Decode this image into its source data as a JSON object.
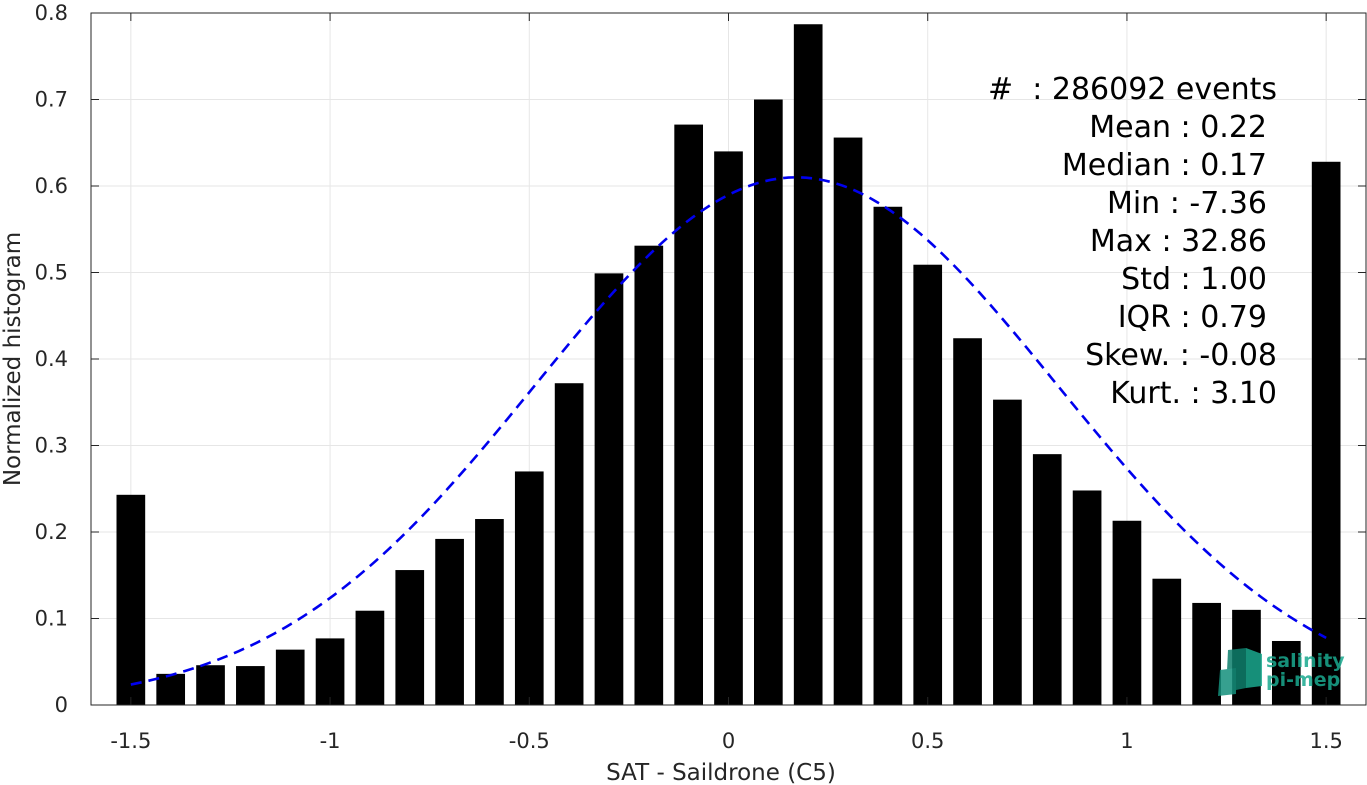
{
  "chart_data": {
    "type": "bar",
    "title": "",
    "xlabel": "SAT - Saildrone (C5)",
    "ylabel": "Normalized histogram",
    "xlim": [
      -1.6,
      1.6
    ],
    "ylim": [
      0,
      0.8
    ],
    "grid": true,
    "bar_color": "#000000",
    "x_ticks": [
      "-1.5",
      "-1",
      "-0.5",
      "0",
      "0.5",
      "1",
      "1.5"
    ],
    "y_ticks": [
      "0",
      "0.1",
      "0.2",
      "0.3",
      "0.4",
      "0.5",
      "0.6",
      "0.7",
      "0.8"
    ],
    "bins": {
      "x": [
        -1.5,
        -1.4,
        -1.3,
        -1.2,
        -1.1,
        -1.0,
        -0.9,
        -0.8,
        -0.7,
        -0.6,
        -0.5,
        -0.4,
        -0.3,
        -0.2,
        -0.1,
        0.0,
        0.1,
        0.2,
        0.3,
        0.4,
        0.5,
        0.6,
        0.7,
        0.8,
        0.9,
        1.0,
        1.1,
        1.2,
        1.3,
        1.4,
        1.5
      ],
      "values": [
        0.243,
        0.036,
        0.046,
        0.045,
        0.064,
        0.077,
        0.109,
        0.156,
        0.192,
        0.215,
        0.27,
        0.372,
        0.499,
        0.531,
        0.671,
        0.64,
        0.7,
        0.787,
        0.656,
        0.576,
        0.509,
        0.424,
        0.353,
        0.29,
        0.248,
        0.213,
        0.146,
        0.118,
        0.11,
        0.074,
        0.628
      ]
    },
    "fit": {
      "style": "dashed",
      "color": "#0000ee",
      "mean": 0.17,
      "std": 0.655,
      "peak": 0.61,
      "x_range": [
        -1.5,
        1.5
      ]
    }
  },
  "stats": {
    "events": "#  : 286092 events",
    "mean": "Mean : 0.22",
    "median": "Median : 0.17",
    "min": "Min : -7.36",
    "max": "Max : 32.86",
    "std": "Std : 1.00",
    "iqr": "IQR : 0.79",
    "skew": "Skew. : -0.08",
    "kurt": "Kurt. : 3.10"
  },
  "logo": {
    "line1": "salinity",
    "line2": "pi-mep",
    "color": "#1aa98f"
  }
}
